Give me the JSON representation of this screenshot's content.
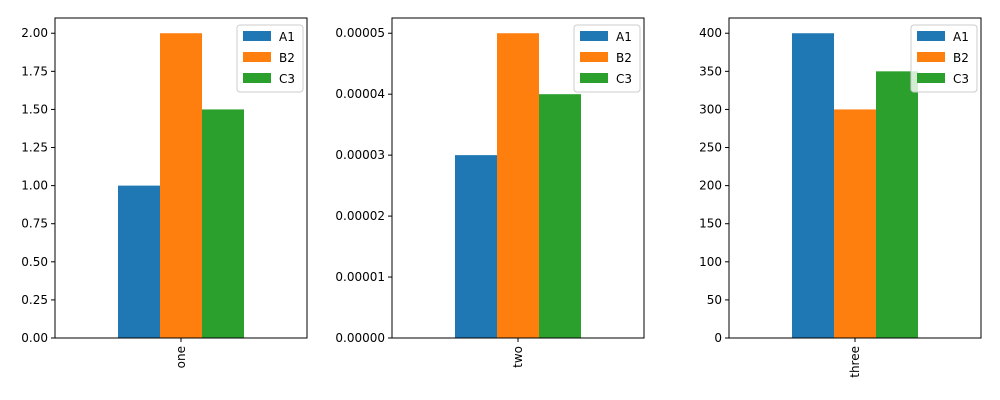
{
  "chart_data": [
    {
      "type": "bar",
      "categories": [
        "one"
      ],
      "series": [
        {
          "name": "A1",
          "values": [
            1.0
          ]
        },
        {
          "name": "B2",
          "values": [
            2.0
          ]
        },
        {
          "name": "C3",
          "values": [
            1.5
          ]
        }
      ],
      "ylim": [
        0,
        2.1
      ],
      "yticks": [
        "0.00",
        "0.25",
        "0.50",
        "0.75",
        "1.00",
        "1.25",
        "1.50",
        "1.75",
        "2.00"
      ],
      "ytick_values": [
        0,
        0.25,
        0.5,
        0.75,
        1.0,
        1.25,
        1.5,
        1.75,
        2.0
      ],
      "legend": "top-right",
      "grid": false
    },
    {
      "type": "bar",
      "categories": [
        "two"
      ],
      "series": [
        {
          "name": "A1",
          "values": [
            3e-05
          ]
        },
        {
          "name": "B2",
          "values": [
            5e-05
          ]
        },
        {
          "name": "C3",
          "values": [
            4e-05
          ]
        }
      ],
      "ylim": [
        0,
        5.25e-05
      ],
      "yticks": [
        "0.00000",
        "0.00001",
        "0.00002",
        "0.00003",
        "0.00004",
        "0.00005"
      ],
      "ytick_values": [
        0,
        1e-05,
        2e-05,
        3e-05,
        4e-05,
        5e-05
      ],
      "legend": "top-right",
      "grid": false
    },
    {
      "type": "bar",
      "categories": [
        "three"
      ],
      "series": [
        {
          "name": "A1",
          "values": [
            400
          ]
        },
        {
          "name": "B2",
          "values": [
            300
          ]
        },
        {
          "name": "C3",
          "values": [
            350
          ]
        }
      ],
      "ylim": [
        0,
        420
      ],
      "yticks": [
        "0",
        "50",
        "100",
        "150",
        "200",
        "250",
        "300",
        "350",
        "400"
      ],
      "ytick_values": [
        0,
        50,
        100,
        150,
        200,
        250,
        300,
        350,
        400
      ],
      "legend": "top-right",
      "grid": false
    }
  ],
  "colors": {
    "A1": "#1f77b4",
    "B2": "#ff7f0e",
    "C3": "#2ca02c"
  }
}
